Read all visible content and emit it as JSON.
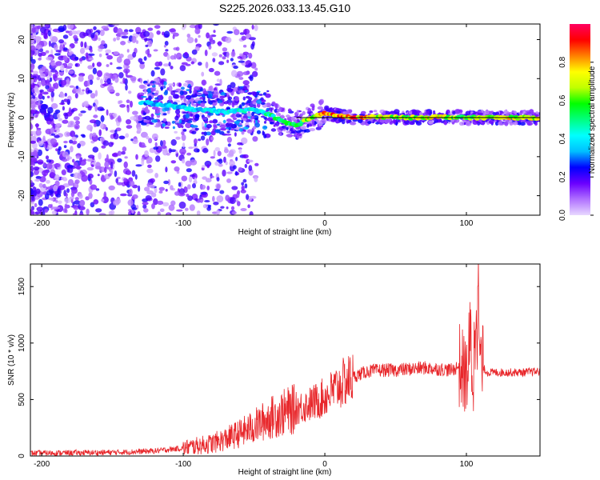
{
  "title": "S225.2026.033.13.45.G10",
  "chart_data": [
    {
      "type": "heatmap",
      "title": "S225.2026.033.13.45.G10",
      "xlabel": "Height of straight line (km)",
      "ylabel": "Frequency (Hz)",
      "xlim": [
        -208,
        152
      ],
      "ylim": [
        -25,
        24
      ],
      "xticks": [
        -200,
        -100,
        0,
        100
      ],
      "yticks": [
        -20,
        -10,
        0,
        10,
        20
      ],
      "colorbar": {
        "label": "Normalized spectral amplitude",
        "range": [
          0,
          1
        ],
        "ticks": [
          0.0,
          0.2,
          0.4,
          0.6,
          0.8
        ],
        "tick_labels": [
          "0.0",
          "0.2",
          "0.4",
          "0.6",
          "0.8"
        ],
        "colors": [
          "#e8d8ff",
          "#b070ff",
          "#6a00ff",
          "#0000ff",
          "#00bfff",
          "#00ffff",
          "#00ff80",
          "#00ff00",
          "#c0ff00",
          "#ffff00",
          "#ff8000",
          "#ff0000",
          "#ff0060"
        ]
      },
      "line_frequency_hz": 0,
      "ridge": {
        "x": [
          -130,
          -110,
          -90,
          -70,
          -50,
          -40,
          -30,
          -20,
          -10,
          0,
          20,
          40,
          60,
          80,
          100,
          120,
          140,
          152
        ],
        "f": [
          4,
          3,
          2,
          1.5,
          2,
          1,
          -1,
          -2,
          0,
          1,
          0,
          0.2,
          0,
          0.2,
          0,
          0,
          0,
          0
        ],
        "amplitude": [
          0.35,
          0.4,
          0.4,
          0.45,
          0.45,
          0.5,
          0.55,
          0.6,
          0.7,
          0.85,
          0.9,
          0.75,
          0.7,
          0.8,
          0.6,
          0.75,
          0.75,
          0.75
        ]
      }
    },
    {
      "type": "line",
      "title": "",
      "xlabel": "Height of straight line (km)",
      "ylabel": "SNR (10 * v/v)",
      "xlim": [
        -208,
        152
      ],
      "ylim": [
        0,
        1700
      ],
      "xticks": [
        -200,
        -100,
        0,
        100
      ],
      "yticks": [
        0,
        500,
        1000,
        1500
      ],
      "color": "#e8262a",
      "series": [
        {
          "name": "SNR",
          "x": [
            -208,
            -180,
            -160,
            -140,
            -120,
            -100,
            -90,
            -80,
            -70,
            -60,
            -50,
            -40,
            -30,
            -20,
            -10,
            0,
            10,
            20,
            30,
            40,
            50,
            60,
            70,
            80,
            90,
            95,
            100,
            103,
            105,
            107,
            110,
            115,
            120,
            130,
            140,
            152
          ],
          "values": [
            25,
            28,
            30,
            35,
            45,
            70,
            90,
            110,
            150,
            200,
            260,
            330,
            380,
            420,
            460,
            520,
            620,
            700,
            750,
            760,
            760,
            770,
            780,
            770,
            760,
            800,
            700,
            1000,
            600,
            1700,
            800,
            740,
            740,
            740,
            740,
            750
          ]
        }
      ]
    }
  ]
}
